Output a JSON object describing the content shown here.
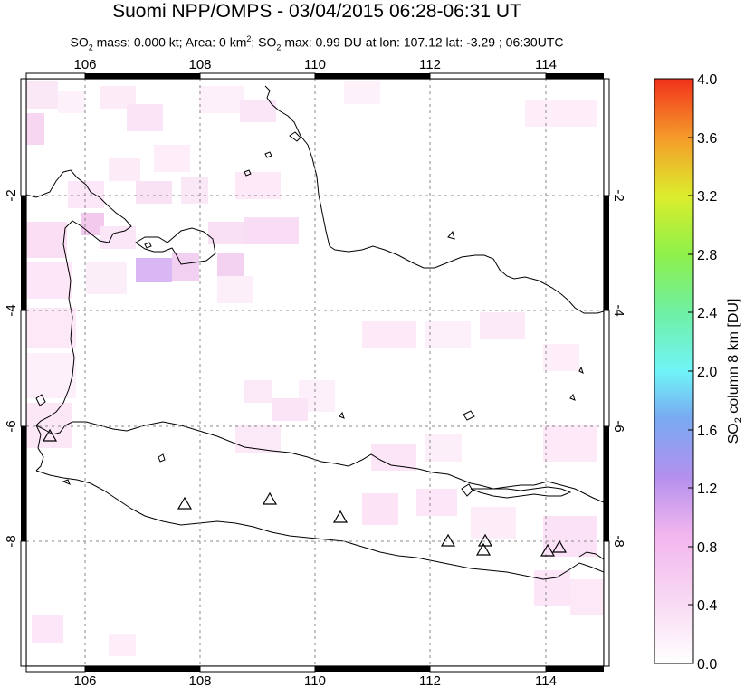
{
  "header": {
    "title": "Suomi NPP/OMPS - 03/04/2015 06:28-06:31 UT",
    "subtitle_parts": {
      "so2_prefix": "SO",
      "sub2": "2",
      "mass": " mass: 0.000 kt; Area: 0 km",
      "sup2": "2",
      "sep": "; SO",
      "sub2b": "2",
      "max": " max: 0.99 DU at lon: 107.12 lat: -3.29 ; 06:30UTC"
    }
  },
  "map": {
    "lon_range": [
      105.0,
      115.0
    ],
    "lat_range": [
      -10.0,
      0.0
    ],
    "x_ticks": [
      "106",
      "108",
      "110",
      "112",
      "114"
    ],
    "y_ticks": [
      "-2",
      "-4",
      "-6",
      "-8"
    ],
    "volcano_icon": "triangle-icon",
    "volcanoes": [
      {
        "lon": 105.42,
        "lat": -6.1
      },
      {
        "lon": 107.73,
        "lat": -7.32
      },
      {
        "lon": 109.2,
        "lat": -7.22
      },
      {
        "lon": 110.44,
        "lat": -7.54
      },
      {
        "lon": 112.31,
        "lat": -7.94
      },
      {
        "lon": 112.93,
        "lat": -7.94
      },
      {
        "lon": 112.92,
        "lat": -8.11
      },
      {
        "lon": 114.04,
        "lat": -8.1
      },
      {
        "lon": 114.24,
        "lat": -8.06
      }
    ]
  },
  "colorbar": {
    "title_main": "SO",
    "title_sub": "2",
    "title_rest": " column 8 km [DU]",
    "ticks": [
      "4.0",
      "3.6",
      "3.2",
      "2.8",
      "2.4",
      "2.0",
      "1.6",
      "1.2",
      "0.8",
      "0.4",
      "0.0"
    ],
    "range": [
      0.0,
      4.0
    ],
    "colors": [
      "#ffffff",
      "#f7c8ef",
      "#b68cf0",
      "#7ab6f2",
      "#72f2f6",
      "#74f2b0",
      "#8ff24c",
      "#e2ec2c",
      "#f7a12b",
      "#f33a1c"
    ]
  }
}
